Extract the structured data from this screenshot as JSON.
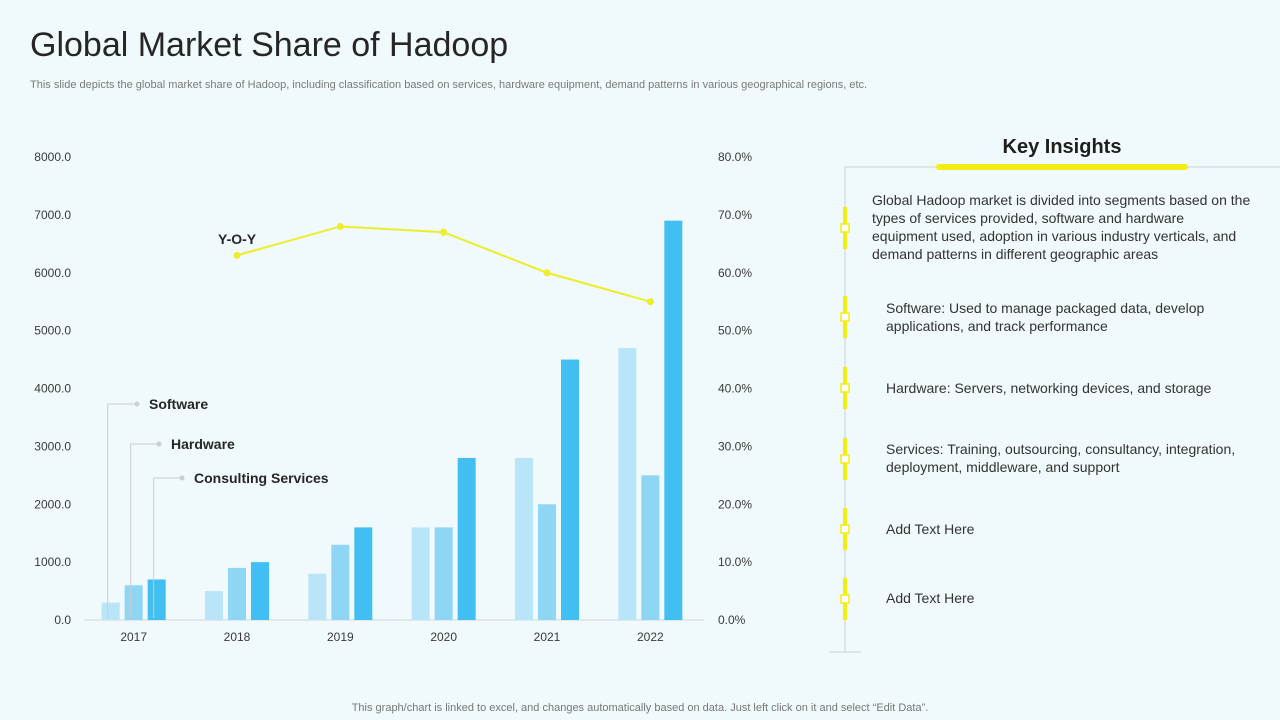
{
  "page": {
    "title": "Global Market Share of Hadoop",
    "subtitle": "This slide depicts the global market share of Hadoop, including classification based on services, hardware equipment, demand patterns in various geographical regions, etc.",
    "footer": "This graph/chart is linked to excel,  and changes automatically based on data. Just left click on it and select “Edit Data”."
  },
  "colors": {
    "software": "#b8e6f8",
    "hardware": "#8fd6f5",
    "consulting": "#42bff2",
    "yoy": "#eded2a",
    "accent": "#f2ee12"
  },
  "chart_data": {
    "type": "bar",
    "categories": [
      "2017",
      "2018",
      "2019",
      "2020",
      "2021",
      "2022"
    ],
    "series": [
      {
        "name": "Software",
        "values": [
          300,
          500,
          800,
          1600,
          2800,
          4700
        ]
      },
      {
        "name": "Hardware",
        "values": [
          600,
          900,
          1300,
          1600,
          2000,
          2500
        ]
      },
      {
        "name": "Consulting Services",
        "values": [
          700,
          1000,
          1600,
          2800,
          4500,
          6900
        ]
      }
    ],
    "line_series": {
      "name": "Y-O-Y",
      "label": "Y-O-Y",
      "values": [
        null,
        63,
        68,
        67,
        60,
        55
      ]
    },
    "y_left": {
      "min": 0,
      "max": 8000,
      "step": 1000,
      "tick_labels": [
        "0.0",
        "1000.0",
        "2000.0",
        "3000.0",
        "4000.0",
        "5000.0",
        "6000.0",
        "7000.0",
        "8000.0"
      ]
    },
    "y_right": {
      "min": 0,
      "max": 80,
      "step": 10,
      "tick_labels": [
        "0.0%",
        "10.0%",
        "20.0%",
        "30.0%",
        "40.0%",
        "50.0%",
        "60.0%",
        "70.0%",
        "80.0%"
      ]
    },
    "legend": [
      "Software",
      "Hardware",
      "Consulting Services"
    ],
    "grid": false
  },
  "insights": {
    "title": "Key Insights",
    "items": [
      "Global Hadoop market is divided into segments based on the types of services provided, software and hardware equipment used, adoption in various industry verticals, and demand patterns in different geographic areas",
      "Software: Used to manage packaged data, develop applications, and track performance",
      "Hardware: Servers, networking devices, and storage",
      "Services: Training, outsourcing, consultancy, integration, deployment, middleware, and support",
      "Add Text Here",
      "Add Text Here"
    ]
  }
}
